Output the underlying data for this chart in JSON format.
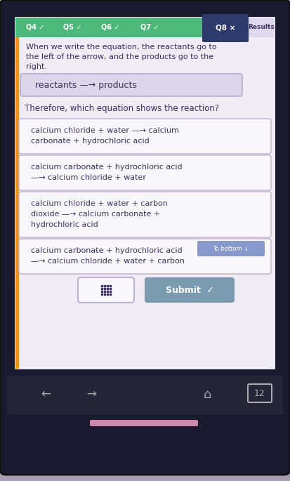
{
  "bg_color": "#a89bb0",
  "phone_bg": "#1a1a2e",
  "content_bg": "#f0ebf5",
  "tab_bar_color": "#4db87a",
  "tab_q8_color": "#2d3a6b",
  "tab_results_color": "#e0d8ee",
  "tab_labels": [
    "Q4 ✓",
    "Q5 ✓",
    "Q6 ✓",
    "Q7 ✓",
    "Q8 ×",
    "Results"
  ],
  "intro_text_lines": [
    "When we write the equation, the reactants go to",
    "the left of the arrow, and the products go to the",
    "right."
  ],
  "equation_box_text": "reactants —→ products",
  "equation_box_bg": "#ddd6e8",
  "question_text": "Therefore, which equation shows the reaction?",
  "options": [
    [
      "calcium chloride + water —→ calcium",
      "carbonate + hydrochloric acid"
    ],
    [
      "calcium carbonate + hydrochloric acid",
      "—→ calcium chloride + water"
    ],
    [
      "calcium chloride + water + carbon",
      "dioxide —→ calcium carbonate +",
      "hydrochloric acid"
    ],
    [
      "calcium carbonate + hydrochloric acid",
      "—→ calcium chloride + water + carbon"
    ]
  ],
  "option_box_color": "#faf7fc",
  "option_border_color": "#c0b0d0",
  "option_text_color": "#3a3060",
  "to_bottom_text": "To bottom ↓",
  "to_bottom_bg": "#8899cc",
  "submit_text": "Submit  ✓",
  "submit_bg": "#7a9ab0",
  "submit_text_color": "#ffffff",
  "grid_icon_color": "#3a3060",
  "nav_bg": "#252538",
  "orange_accent": "#e8941a",
  "pill_color": "#cc88aa",
  "intro_text_color": "#3a3060"
}
